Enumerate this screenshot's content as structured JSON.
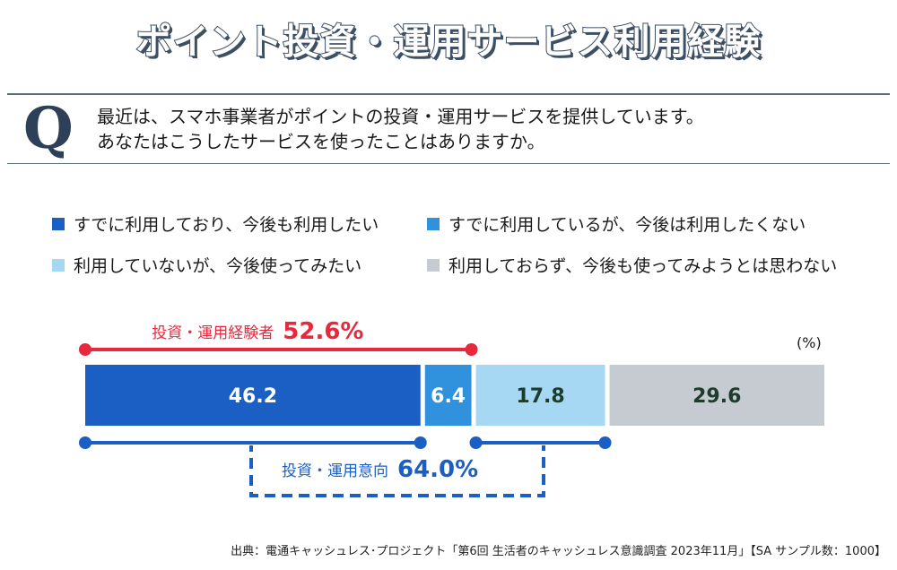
{
  "title": "ポイント投資・運用サービス利用経験",
  "question": {
    "mark": "Q",
    "line1": "最近は、スマホ事業者がポイントの投資・運用サービスを提供しています。",
    "line2": "あなたはこうしたサービスを使ったことはありますか。"
  },
  "colors": {
    "s1": "#1c5fc4",
    "s2": "#3091dd",
    "s3": "#a6d8f3",
    "s4": "#c5cbd1",
    "experience": "#e8283c",
    "intent": "#1c5fc4"
  },
  "chart_data": {
    "type": "bar",
    "orientation": "horizontal-stacked",
    "unit_label": "(%)",
    "series": [
      {
        "name": "すでに利用しており、今後も利用したい",
        "value": 46.2,
        "label": "46.2"
      },
      {
        "name": "すでに利用しているが、今後は利用したくない",
        "value": 6.4,
        "label": "6.4"
      },
      {
        "name": "利用していないが、今後使ってみたい",
        "value": 17.8,
        "label": "17.8"
      },
      {
        "name": "利用しておらず、今後も使ってみようとは思わない",
        "value": 29.6,
        "label": "29.6"
      }
    ],
    "annotations": {
      "experience": {
        "label": "投資・運用経験者",
        "value": "52.6%"
      },
      "intent": {
        "label": "投資・運用意向",
        "value": "64.0%"
      }
    }
  },
  "source": "出典：電通キャッシュレス･プロジェクト「第6回 生活者のキャッシュレス意識調査 2023年11月」【SA サンプル数：1000】"
}
